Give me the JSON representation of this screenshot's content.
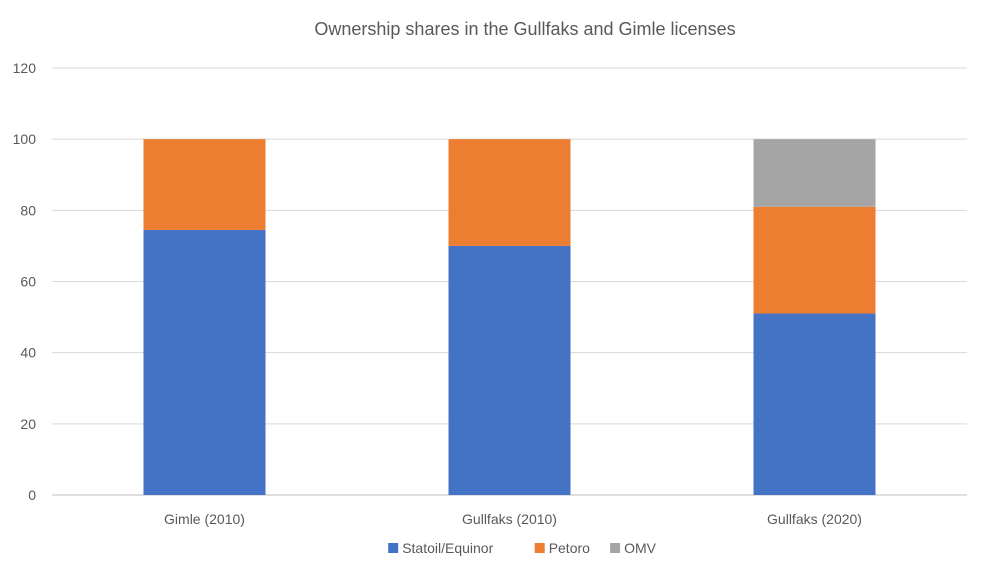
{
  "chart_data": {
    "type": "bar",
    "stacked": true,
    "title": "Ownership shares in the Gullfaks and Gimle licenses",
    "xlabel": "",
    "ylabel": "",
    "categories": [
      "Gimle (2010)",
      "Gullfaks (2010)",
      "Gullfaks (2020)"
    ],
    "series": [
      {
        "name": "Statoil/Equinor",
        "values": [
          74.5,
          70,
          51
        ],
        "color": "#4472C4"
      },
      {
        "name": "Petoro",
        "values": [
          25.5,
          30,
          30
        ],
        "color": "#ED7D31"
      },
      {
        "name": "OMV",
        "values": [
          0,
          0,
          19
        ],
        "color": "#A5A5A5"
      }
    ],
    "ylim": [
      0,
      120
    ],
    "yticks": [
      0,
      20,
      40,
      60,
      80,
      100,
      120
    ],
    "grid": true,
    "legend_position": "bottom"
  }
}
